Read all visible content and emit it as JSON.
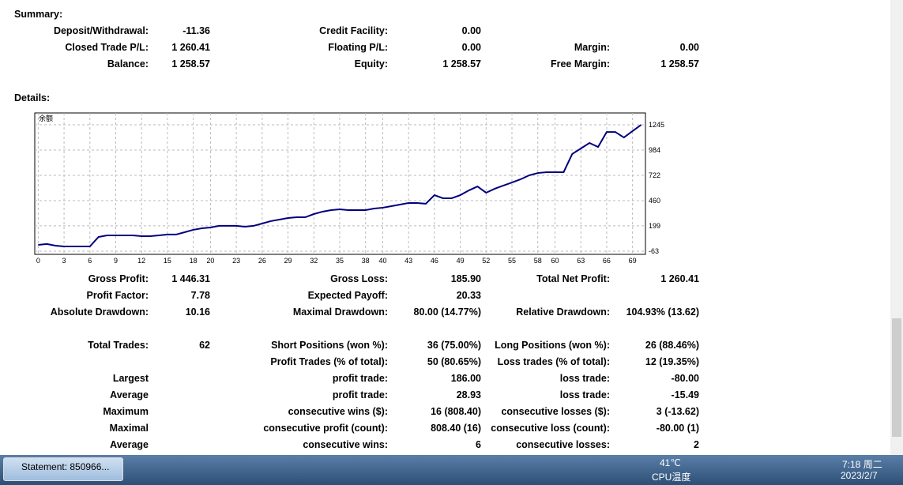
{
  "summary": {
    "title": "Summary:",
    "rows": [
      [
        [
          "Deposit/Withdrawal:",
          "-11.36"
        ],
        [
          "Credit Facility:",
          "0.00"
        ],
        null
      ],
      [
        [
          "Closed Trade P/L:",
          "1 260.41"
        ],
        [
          "Floating P/L:",
          "0.00"
        ],
        [
          "Margin:",
          "0.00"
        ]
      ],
      [
        [
          "Balance:",
          "1 258.57"
        ],
        [
          "Equity:",
          "1 258.57"
        ],
        [
          "Free Margin:",
          "1 258.57"
        ]
      ]
    ]
  },
  "details": {
    "title": "Details:",
    "performance": [
      [
        [
          "Gross Profit:",
          "1 446.31"
        ],
        [
          "Gross Loss:",
          "185.90"
        ],
        [
          "Total Net Profit:",
          "1 260.41"
        ]
      ],
      [
        [
          "Profit Factor:",
          "7.78"
        ],
        [
          "Expected Payoff:",
          "20.33"
        ],
        null
      ],
      [
        [
          "Absolute Drawdown:",
          "10.16"
        ],
        [
          "Maximal Drawdown:",
          "80.00 (14.77%)"
        ],
        [
          "Relative Drawdown:",
          "104.93% (13.62)"
        ]
      ]
    ],
    "trades": [
      [
        [
          "Total Trades:",
          "62"
        ],
        [
          "Short Positions (won %):",
          "36 (75.00%)"
        ],
        [
          "Long Positions (won %):",
          "26 (88.46%)"
        ]
      ],
      [
        null,
        [
          "Profit Trades (% of total):",
          "50 (80.65%)"
        ],
        [
          "Loss trades (% of total):",
          "12 (19.35%)"
        ]
      ],
      [
        [
          "Largest",
          null
        ],
        [
          "profit trade:",
          "186.00"
        ],
        [
          "loss trade:",
          "-80.00"
        ]
      ],
      [
        [
          "Average",
          null
        ],
        [
          "profit trade:",
          "28.93"
        ],
        [
          "loss trade:",
          "-15.49"
        ]
      ],
      [
        [
          "Maximum",
          null
        ],
        [
          "consecutive wins ($):",
          "16 (808.40)"
        ],
        [
          "consecutive losses ($):",
          "3 (-13.62)"
        ]
      ],
      [
        [
          "Maximal",
          null
        ],
        [
          "consecutive profit (count):",
          "808.40 (16)"
        ],
        [
          "consecutive loss (count):",
          "-80.00 (1)"
        ]
      ],
      [
        [
          "Average",
          null
        ],
        [
          "consecutive wins:",
          "6"
        ],
        [
          "consecutive losses:",
          "2"
        ]
      ]
    ]
  },
  "chart_data": {
    "type": "line",
    "title": "余额",
    "color": "#00007f",
    "grid": true,
    "x": [
      0,
      1,
      2,
      3,
      4,
      5,
      6,
      7,
      8,
      9,
      10,
      11,
      12,
      13,
      14,
      15,
      16,
      17,
      18,
      19,
      20,
      21,
      22,
      23,
      24,
      25,
      26,
      27,
      28,
      29,
      30,
      31,
      32,
      33,
      34,
      35,
      36,
      37,
      38,
      39,
      40,
      41,
      42,
      43,
      44,
      45,
      46,
      47,
      48,
      49,
      50,
      51,
      52,
      53,
      54,
      55,
      56,
      57,
      58,
      59,
      60,
      61,
      62,
      63,
      64,
      65,
      66,
      67,
      68,
      69,
      70
    ],
    "values": [
      2,
      11,
      -6,
      -14,
      -14,
      -14,
      -14,
      84,
      100,
      100,
      100,
      100,
      92,
      92,
      100,
      109,
      109,
      133,
      158,
      174,
      182,
      199,
      199,
      199,
      190,
      199,
      223,
      248,
      264,
      280,
      288,
      288,
      321,
      346,
      362,
      370,
      362,
      362,
      362,
      378,
      387,
      403,
      419,
      436,
      436,
      428,
      517,
      485,
      485,
      517,
      566,
      607,
      542,
      583,
      616,
      648,
      681,
      722,
      746,
      755,
      755,
      755,
      943,
      1000,
      1057,
      1016,
      1171,
      1171,
      1114,
      1180,
      1245
    ],
    "xlim": [
      -0.4,
      70.5
    ],
    "xticks": [
      0,
      3,
      6,
      9,
      12,
      15,
      18,
      20,
      23,
      26,
      29,
      32,
      35,
      38,
      40,
      43,
      46,
      49,
      52,
      55,
      58,
      60,
      63,
      66,
      69
    ],
    "ylim": [
      -96,
      1368
    ],
    "yticks": [
      1245,
      984,
      722,
      460,
      199,
      -63
    ]
  },
  "taskbar": {
    "window": "Statement: 850966...",
    "temperature": "41℃",
    "sensor": "CPU温度",
    "time": "7:18 周二",
    "date": "2023/2/7"
  }
}
